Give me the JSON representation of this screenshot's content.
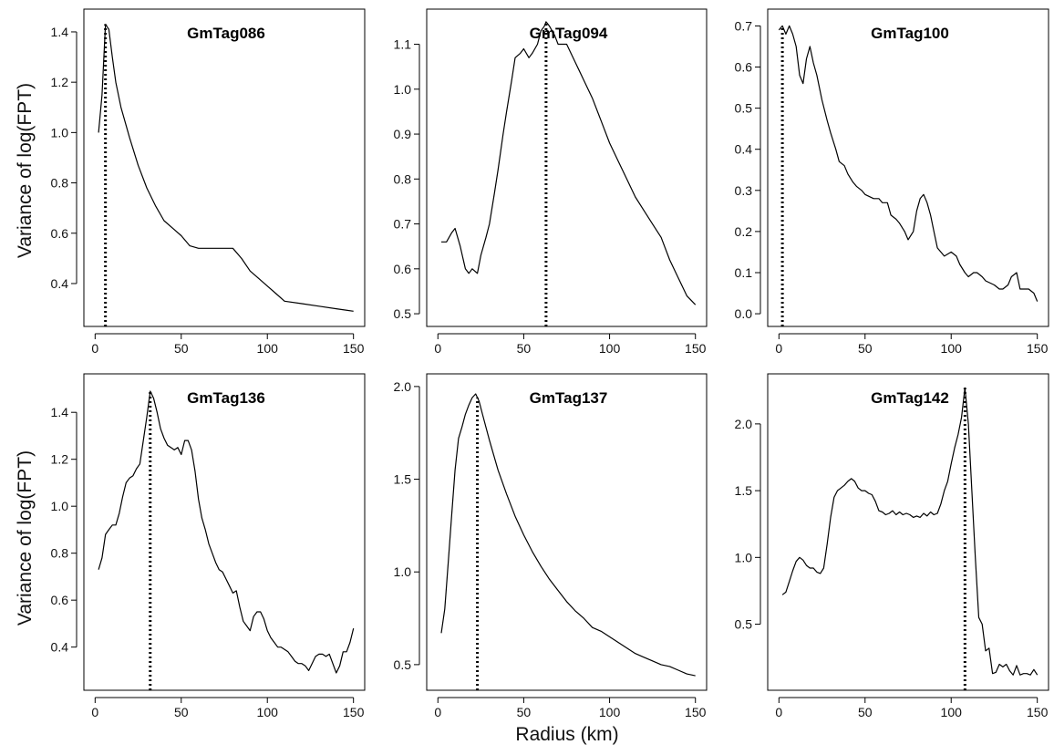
{
  "ylabel": "Variance of log(FPT)",
  "xlabel": "Radius (km)",
  "chart_data": [
    {
      "type": "line",
      "title": "GmTag086",
      "xlim": [
        0,
        150
      ],
      "ylim": [
        0.28,
        1.44
      ],
      "xticks": [
        "0",
        "50",
        "100",
        "150"
      ],
      "xtick_values": [
        0,
        50,
        100,
        150
      ],
      "yticks": [
        "0.4",
        "0.6",
        "0.8",
        "1.0",
        "1.2",
        "1.4"
      ],
      "ytick_values": [
        0.4,
        0.6,
        0.8,
        1.0,
        1.2,
        1.4
      ],
      "peak_x": 6,
      "x": [
        2,
        4,
        6,
        8,
        10,
        12,
        15,
        20,
        25,
        30,
        35,
        40,
        45,
        50,
        55,
        60,
        65,
        70,
        75,
        80,
        85,
        90,
        95,
        100,
        105,
        110,
        120,
        130,
        140,
        150
      ],
      "y": [
        1.0,
        1.15,
        1.43,
        1.41,
        1.3,
        1.2,
        1.1,
        0.98,
        0.87,
        0.78,
        0.71,
        0.65,
        0.62,
        0.59,
        0.55,
        0.54,
        0.54,
        0.54,
        0.54,
        0.54,
        0.5,
        0.45,
        0.42,
        0.39,
        0.36,
        0.33,
        0.32,
        0.31,
        0.3,
        0.29
      ]
    },
    {
      "type": "line",
      "title": "GmTag094",
      "xlim": [
        0,
        150
      ],
      "ylim": [
        0.5,
        1.15
      ],
      "xticks": [
        "0",
        "50",
        "100",
        "150"
      ],
      "xtick_values": [
        0,
        50,
        100,
        150
      ],
      "yticks": [
        "0.5",
        "0.6",
        "0.7",
        "0.8",
        "0.9",
        "1.0",
        "1.1"
      ],
      "ytick_values": [
        0.5,
        0.6,
        0.7,
        0.8,
        0.9,
        1.0,
        1.1
      ],
      "peak_x": 63,
      "x": [
        2,
        5,
        8,
        10,
        13,
        16,
        18,
        20,
        23,
        25,
        28,
        30,
        33,
        35,
        38,
        40,
        43,
        45,
        48,
        50,
        53,
        55,
        58,
        60,
        62,
        63,
        65,
        68,
        70,
        72,
        75,
        80,
        85,
        90,
        95,
        100,
        105,
        110,
        115,
        120,
        125,
        130,
        135,
        140,
        145,
        150
      ],
      "y": [
        0.66,
        0.66,
        0.68,
        0.69,
        0.65,
        0.6,
        0.59,
        0.6,
        0.59,
        0.63,
        0.67,
        0.7,
        0.77,
        0.82,
        0.9,
        0.95,
        1.02,
        1.07,
        1.08,
        1.09,
        1.07,
        1.08,
        1.1,
        1.13,
        1.14,
        1.15,
        1.14,
        1.12,
        1.1,
        1.1,
        1.1,
        1.06,
        1.02,
        0.98,
        0.93,
        0.88,
        0.84,
        0.8,
        0.76,
        0.73,
        0.7,
        0.67,
        0.62,
        0.58,
        0.54,
        0.52
      ]
    },
    {
      "type": "line",
      "title": "GmTag100",
      "xlim": [
        0,
        150
      ],
      "ylim": [
        0.0,
        0.71
      ],
      "xticks": [
        "0",
        "50",
        "100",
        "150"
      ],
      "xtick_values": [
        0,
        50,
        100,
        150
      ],
      "yticks": [
        "0.0",
        "0.1",
        "0.2",
        "0.3",
        "0.4",
        "0.5",
        "0.6",
        "0.7"
      ],
      "ytick_values": [
        0.0,
        0.1,
        0.2,
        0.3,
        0.4,
        0.5,
        0.6,
        0.7
      ],
      "peak_x": 2,
      "x": [
        0,
        2,
        4,
        6,
        8,
        10,
        12,
        14,
        16,
        18,
        20,
        22,
        25,
        28,
        30,
        33,
        35,
        38,
        40,
        43,
        45,
        48,
        50,
        55,
        58,
        60,
        63,
        65,
        68,
        70,
        73,
        75,
        78,
        80,
        82,
        84,
        86,
        88,
        90,
        92,
        94,
        96,
        100,
        103,
        105,
        108,
        110,
        113,
        115,
        118,
        120,
        125,
        128,
        130,
        133,
        135,
        138,
        140,
        142,
        145,
        148,
        150
      ],
      "y": [
        0.69,
        0.7,
        0.68,
        0.7,
        0.68,
        0.65,
        0.58,
        0.56,
        0.62,
        0.65,
        0.61,
        0.58,
        0.52,
        0.47,
        0.44,
        0.4,
        0.37,
        0.36,
        0.34,
        0.32,
        0.31,
        0.3,
        0.29,
        0.28,
        0.28,
        0.27,
        0.27,
        0.24,
        0.23,
        0.22,
        0.2,
        0.18,
        0.2,
        0.25,
        0.28,
        0.29,
        0.27,
        0.24,
        0.2,
        0.16,
        0.15,
        0.14,
        0.15,
        0.14,
        0.12,
        0.1,
        0.09,
        0.1,
        0.1,
        0.09,
        0.08,
        0.07,
        0.06,
        0.06,
        0.07,
        0.09,
        0.1,
        0.06,
        0.06,
        0.06,
        0.05,
        0.03
      ]
    },
    {
      "type": "line",
      "title": "GmTag136",
      "xlim": [
        0,
        150
      ],
      "ylim": [
        0.27,
        1.51
      ],
      "xticks": [
        "0",
        "50",
        "100",
        "150"
      ],
      "xtick_values": [
        0,
        50,
        100,
        150
      ],
      "yticks": [
        "0.4",
        "0.6",
        "0.8",
        "1.0",
        "1.2",
        "1.4"
      ],
      "ytick_values": [
        0.4,
        0.6,
        0.8,
        1.0,
        1.2,
        1.4
      ],
      "peak_x": 32,
      "x": [
        2,
        4,
        6,
        8,
        10,
        12,
        14,
        16,
        18,
        20,
        22,
        24,
        26,
        28,
        30,
        32,
        34,
        36,
        38,
        40,
        42,
        44,
        46,
        48,
        50,
        52,
        54,
        56,
        58,
        60,
        62,
        64,
        66,
        68,
        70,
        72,
        74,
        76,
        78,
        80,
        82,
        84,
        86,
        88,
        90,
        92,
        94,
        96,
        98,
        100,
        102,
        104,
        106,
        108,
        110,
        112,
        114,
        116,
        118,
        120,
        122,
        124,
        126,
        128,
        130,
        132,
        134,
        136,
        138,
        140,
        142,
        144,
        146,
        148,
        150
      ],
      "y": [
        0.73,
        0.78,
        0.88,
        0.9,
        0.92,
        0.92,
        0.97,
        1.04,
        1.1,
        1.12,
        1.13,
        1.16,
        1.18,
        1.28,
        1.38,
        1.49,
        1.46,
        1.4,
        1.33,
        1.29,
        1.26,
        1.25,
        1.24,
        1.25,
        1.22,
        1.28,
        1.28,
        1.24,
        1.15,
        1.03,
        0.95,
        0.9,
        0.84,
        0.8,
        0.76,
        0.73,
        0.72,
        0.69,
        0.66,
        0.63,
        0.64,
        0.57,
        0.51,
        0.49,
        0.47,
        0.53,
        0.55,
        0.55,
        0.52,
        0.47,
        0.44,
        0.42,
        0.4,
        0.4,
        0.39,
        0.38,
        0.36,
        0.34,
        0.33,
        0.33,
        0.32,
        0.3,
        0.33,
        0.36,
        0.37,
        0.37,
        0.36,
        0.37,
        0.33,
        0.29,
        0.32,
        0.38,
        0.38,
        0.42,
        0.48
      ]
    },
    {
      "type": "line",
      "title": "GmTag137",
      "xlim": [
        0,
        150
      ],
      "ylim": [
        0.43,
        2.0
      ],
      "xticks": [
        "0",
        "50",
        "100",
        "150"
      ],
      "xtick_values": [
        0,
        50,
        100,
        150
      ],
      "yticks": [
        "0.5",
        "1.0",
        "1.5",
        "2.0"
      ],
      "ytick_values": [
        0.5,
        1.0,
        1.5,
        2.0
      ],
      "peak_x": 23,
      "x": [
        2,
        4,
        6,
        8,
        10,
        12,
        14,
        16,
        18,
        20,
        22,
        24,
        26,
        28,
        30,
        35,
        40,
        45,
        50,
        55,
        60,
        65,
        70,
        75,
        80,
        85,
        90,
        95,
        100,
        105,
        110,
        115,
        120,
        125,
        130,
        135,
        140,
        145,
        150
      ],
      "y": [
        0.67,
        0.8,
        1.05,
        1.3,
        1.55,
        1.72,
        1.78,
        1.85,
        1.9,
        1.94,
        1.96,
        1.92,
        1.85,
        1.78,
        1.71,
        1.55,
        1.42,
        1.3,
        1.2,
        1.11,
        1.03,
        0.96,
        0.9,
        0.84,
        0.79,
        0.75,
        0.7,
        0.68,
        0.65,
        0.62,
        0.59,
        0.56,
        0.54,
        0.52,
        0.5,
        0.49,
        0.47,
        0.45,
        0.44
      ]
    },
    {
      "type": "line",
      "title": "GmTag142",
      "xlim": [
        0,
        150
      ],
      "ylim": [
        0.1,
        2.28
      ],
      "xticks": [
        "0",
        "50",
        "100",
        "150"
      ],
      "xtick_values": [
        0,
        50,
        100,
        150
      ],
      "yticks": [
        "0.5",
        "1.0",
        "1.5",
        "2.0"
      ],
      "ytick_values": [
        0.5,
        1.0,
        1.5,
        2.0
      ],
      "peak_x": 108,
      "x": [
        2,
        4,
        6,
        8,
        10,
        12,
        14,
        16,
        18,
        20,
        22,
        24,
        26,
        28,
        30,
        32,
        34,
        36,
        38,
        40,
        42,
        44,
        46,
        48,
        50,
        52,
        54,
        56,
        58,
        60,
        62,
        64,
        66,
        68,
        70,
        72,
        74,
        76,
        78,
        80,
        82,
        84,
        86,
        88,
        90,
        92,
        94,
        96,
        98,
        100,
        102,
        104,
        106,
        108,
        110,
        112,
        114,
        116,
        118,
        120,
        122,
        124,
        126,
        128,
        130,
        132,
        134,
        136,
        138,
        140,
        142,
        144,
        146,
        148,
        150
      ],
      "y": [
        0.72,
        0.74,
        0.82,
        0.9,
        0.97,
        1.0,
        0.98,
        0.94,
        0.92,
        0.92,
        0.89,
        0.88,
        0.92,
        1.1,
        1.3,
        1.45,
        1.5,
        1.52,
        1.54,
        1.57,
        1.59,
        1.57,
        1.52,
        1.5,
        1.5,
        1.48,
        1.47,
        1.42,
        1.35,
        1.34,
        1.32,
        1.33,
        1.35,
        1.32,
        1.34,
        1.32,
        1.33,
        1.32,
        1.3,
        1.31,
        1.3,
        1.33,
        1.31,
        1.34,
        1.32,
        1.33,
        1.4,
        1.5,
        1.57,
        1.7,
        1.82,
        1.92,
        2.05,
        2.27,
        2.0,
        1.5,
        1.0,
        0.55,
        0.5,
        0.3,
        0.32,
        0.13,
        0.14,
        0.2,
        0.18,
        0.2,
        0.15,
        0.12,
        0.19,
        0.12,
        0.13,
        0.13,
        0.12,
        0.16,
        0.12
      ]
    }
  ]
}
